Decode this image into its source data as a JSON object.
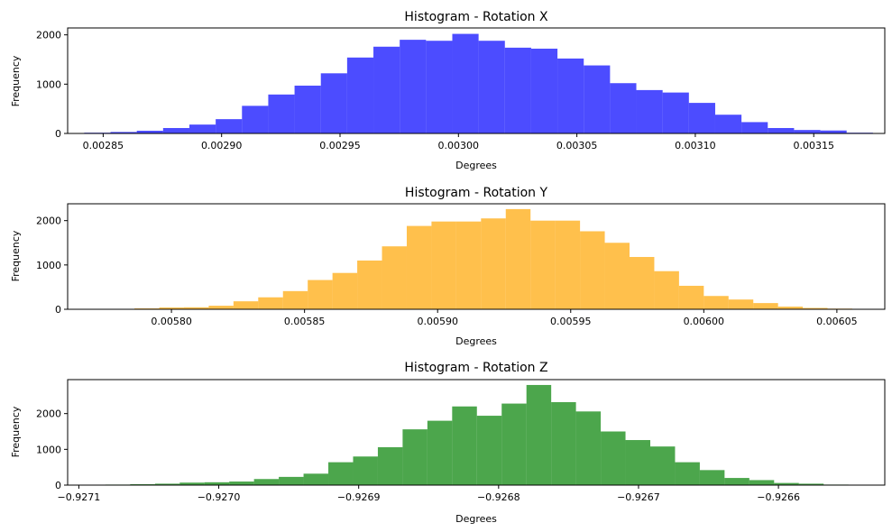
{
  "chart_data": [
    {
      "type": "bar",
      "title": "Histogram - Rotation X",
      "xlabel": "Degrees",
      "ylabel": "Frequency",
      "color": "#0000ff",
      "opacity": 0.7,
      "bin_start": 0.002842,
      "bin_width": 1.11e-05,
      "counts": [
        15,
        30,
        55,
        110,
        180,
        290,
        560,
        790,
        970,
        1220,
        1540,
        1760,
        1900,
        1880,
        2020,
        1880,
        1740,
        1720,
        1520,
        1380,
        1020,
        880,
        830,
        620,
        380,
        230,
        110,
        70,
        60,
        15
      ],
      "xlim": [
        0.002835,
        0.00318
      ],
      "ylim": [
        0,
        2140
      ],
      "xticks": [
        0.00285,
        0.0029,
        0.00295,
        0.003,
        0.00305,
        0.0031,
        0.00315
      ],
      "xtick_labels": [
        "0.00285",
        "0.00290",
        "0.00295",
        "0.00300",
        "0.00305",
        "0.00310",
        "0.00315"
      ],
      "yticks": [
        0,
        1000,
        2000
      ],
      "ytick_labels": [
        "0",
        "1000",
        "2000"
      ]
    },
    {
      "type": "bar",
      "title": "Histogram - Rotation Y",
      "xlabel": "Degrees",
      "ylabel": "Frequency",
      "color": "#ffa500",
      "opacity": 0.7,
      "bin_start": 0.0057768,
      "bin_width": 9.3e-06,
      "counts": [
        10,
        20,
        40,
        45,
        80,
        180,
        270,
        410,
        660,
        820,
        1100,
        1420,
        1880,
        1980,
        1980,
        2050,
        2260,
        2000,
        2000,
        1760,
        1500,
        1180,
        860,
        530,
        300,
        220,
        140,
        60,
        30,
        15
      ],
      "xlim": [
        0.005761,
        0.006068
      ],
      "ylim": [
        0,
        2380
      ],
      "xticks": [
        0.0058,
        0.00585,
        0.0059,
        0.00595,
        0.006,
        0.00605
      ],
      "xtick_labels": [
        "0.00580",
        "0.00585",
        "0.00590",
        "0.00595",
        "0.00600",
        "0.00605"
      ],
      "yticks": [
        0,
        1000,
        2000
      ],
      "ytick_labels": [
        "0",
        "1000",
        "2000"
      ]
    },
    {
      "type": "bar",
      "title": "Histogram - Rotation Z",
      "xlabel": "Degrees",
      "ylabel": "Frequency",
      "color": "#008000",
      "opacity": 0.7,
      "bin_start": -0.927081,
      "bin_width": 1.77e-05,
      "counts": [
        15,
        25,
        40,
        70,
        80,
        100,
        170,
        230,
        320,
        640,
        800,
        1060,
        1560,
        1800,
        2200,
        1940,
        2280,
        2800,
        2320,
        2060,
        1500,
        1260,
        1080,
        640,
        420,
        200,
        140,
        60,
        40,
        15
      ],
      "xlim": [
        -0.927108,
        -0.926524
      ],
      "ylim": [
        0,
        2950
      ],
      "xticks": [
        -0.9271,
        -0.927,
        -0.9269,
        -0.9268,
        -0.9267,
        -0.9266
      ],
      "xtick_labels": [
        "−0.9271",
        "−0.9270",
        "−0.9269",
        "−0.9268",
        "−0.9267",
        "−0.9266"
      ],
      "yticks": [
        0,
        1000,
        2000
      ],
      "ytick_labels": [
        "0",
        "1000",
        "2000"
      ]
    }
  ]
}
